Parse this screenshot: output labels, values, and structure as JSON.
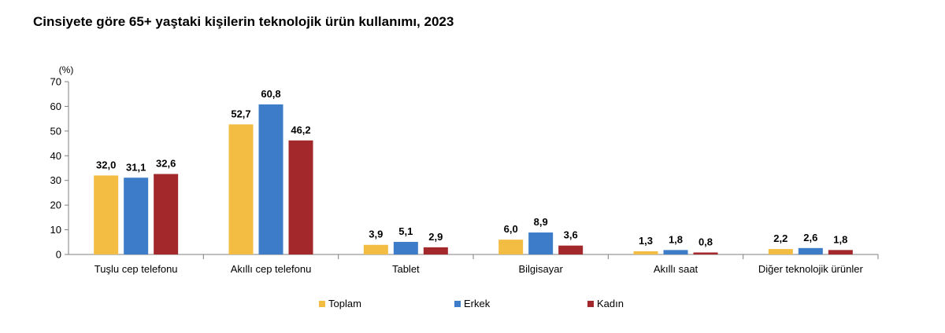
{
  "title": "Cinsiyete göre 65+ yaştaki kişilerin teknolojik ürün kullanımı, 2023",
  "chart_data": {
    "type": "bar",
    "title": "Cinsiyete göre 65+ yaştaki kişilerin teknolojik ürün kullanımı, 2023",
    "unit_label": "(%)",
    "categories": [
      "Tuşlu cep telefonu",
      "Akıllı cep telefonu",
      "Tablet",
      "Bilgisayar",
      "Akıllı saat",
      "Diğer teknolojik ürünler"
    ],
    "series": [
      {
        "name": "Toplam",
        "color": "#f2bd42",
        "values": [
          32.0,
          52.7,
          3.9,
          6.0,
          1.3,
          2.2
        ],
        "labels": [
          "32,0",
          "52,7",
          "3,9",
          "6,0",
          "1,3",
          "2,2"
        ]
      },
      {
        "name": "Erkek",
        "color": "#3d7cc9",
        "values": [
          31.1,
          60.8,
          5.1,
          8.9,
          1.8,
          2.6
        ],
        "labels": [
          "31,1",
          "60,8",
          "5,1",
          "8,9",
          "1,8",
          "2,6"
        ]
      },
      {
        "name": "Kadın",
        "color": "#a3282b",
        "values": [
          32.6,
          46.2,
          2.9,
          3.6,
          0.8,
          1.8
        ],
        "labels": [
          "32,6",
          "46,2",
          "2,9",
          "3,6",
          "0,8",
          "1,8"
        ]
      }
    ],
    "ylim": [
      0,
      70
    ],
    "yticks": [
      0,
      10,
      20,
      30,
      40,
      50,
      60,
      70
    ],
    "grid": false,
    "legend_position": "bottom-center"
  }
}
